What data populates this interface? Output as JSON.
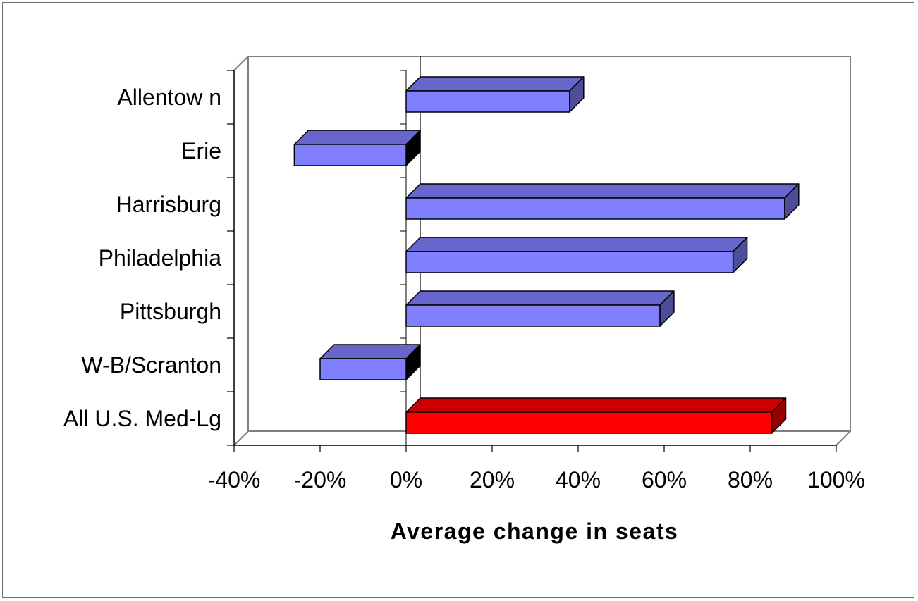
{
  "chart_data": {
    "type": "bar",
    "orientation": "horizontal",
    "style": "3d",
    "title": "",
    "xlabel": "Average change in seats",
    "ylabel": "",
    "xlim": [
      -40,
      100
    ],
    "x_ticks": [
      "-40%",
      "-20%",
      "0%",
      "20%",
      "40%",
      "60%",
      "80%",
      "100%"
    ],
    "x_tick_values": [
      -40,
      -20,
      0,
      20,
      40,
      60,
      80,
      100
    ],
    "grid": false,
    "legend": "none",
    "categories": [
      "Allentow n",
      "Erie",
      "Harrisburg",
      "Philadelphia",
      "Pittsburgh",
      "W-B/Scranton",
      "All U.S. Med-Lg"
    ],
    "values": [
      38,
      -26,
      88,
      76,
      59,
      -20,
      85
    ],
    "bar_colors": [
      "#8080ff",
      "#8080ff",
      "#8080ff",
      "#8080ff",
      "#8080ff",
      "#8080ff",
      "#ff0000"
    ]
  },
  "colors": {
    "bar_front": "#8080ff",
    "bar_top": "#6666cc",
    "bar_side": "#4d4d99",
    "highlight_front": "#ff0000",
    "highlight_top": "#cc0000",
    "highlight_side": "#990000",
    "wall": "#808080",
    "outline": "#000000"
  }
}
